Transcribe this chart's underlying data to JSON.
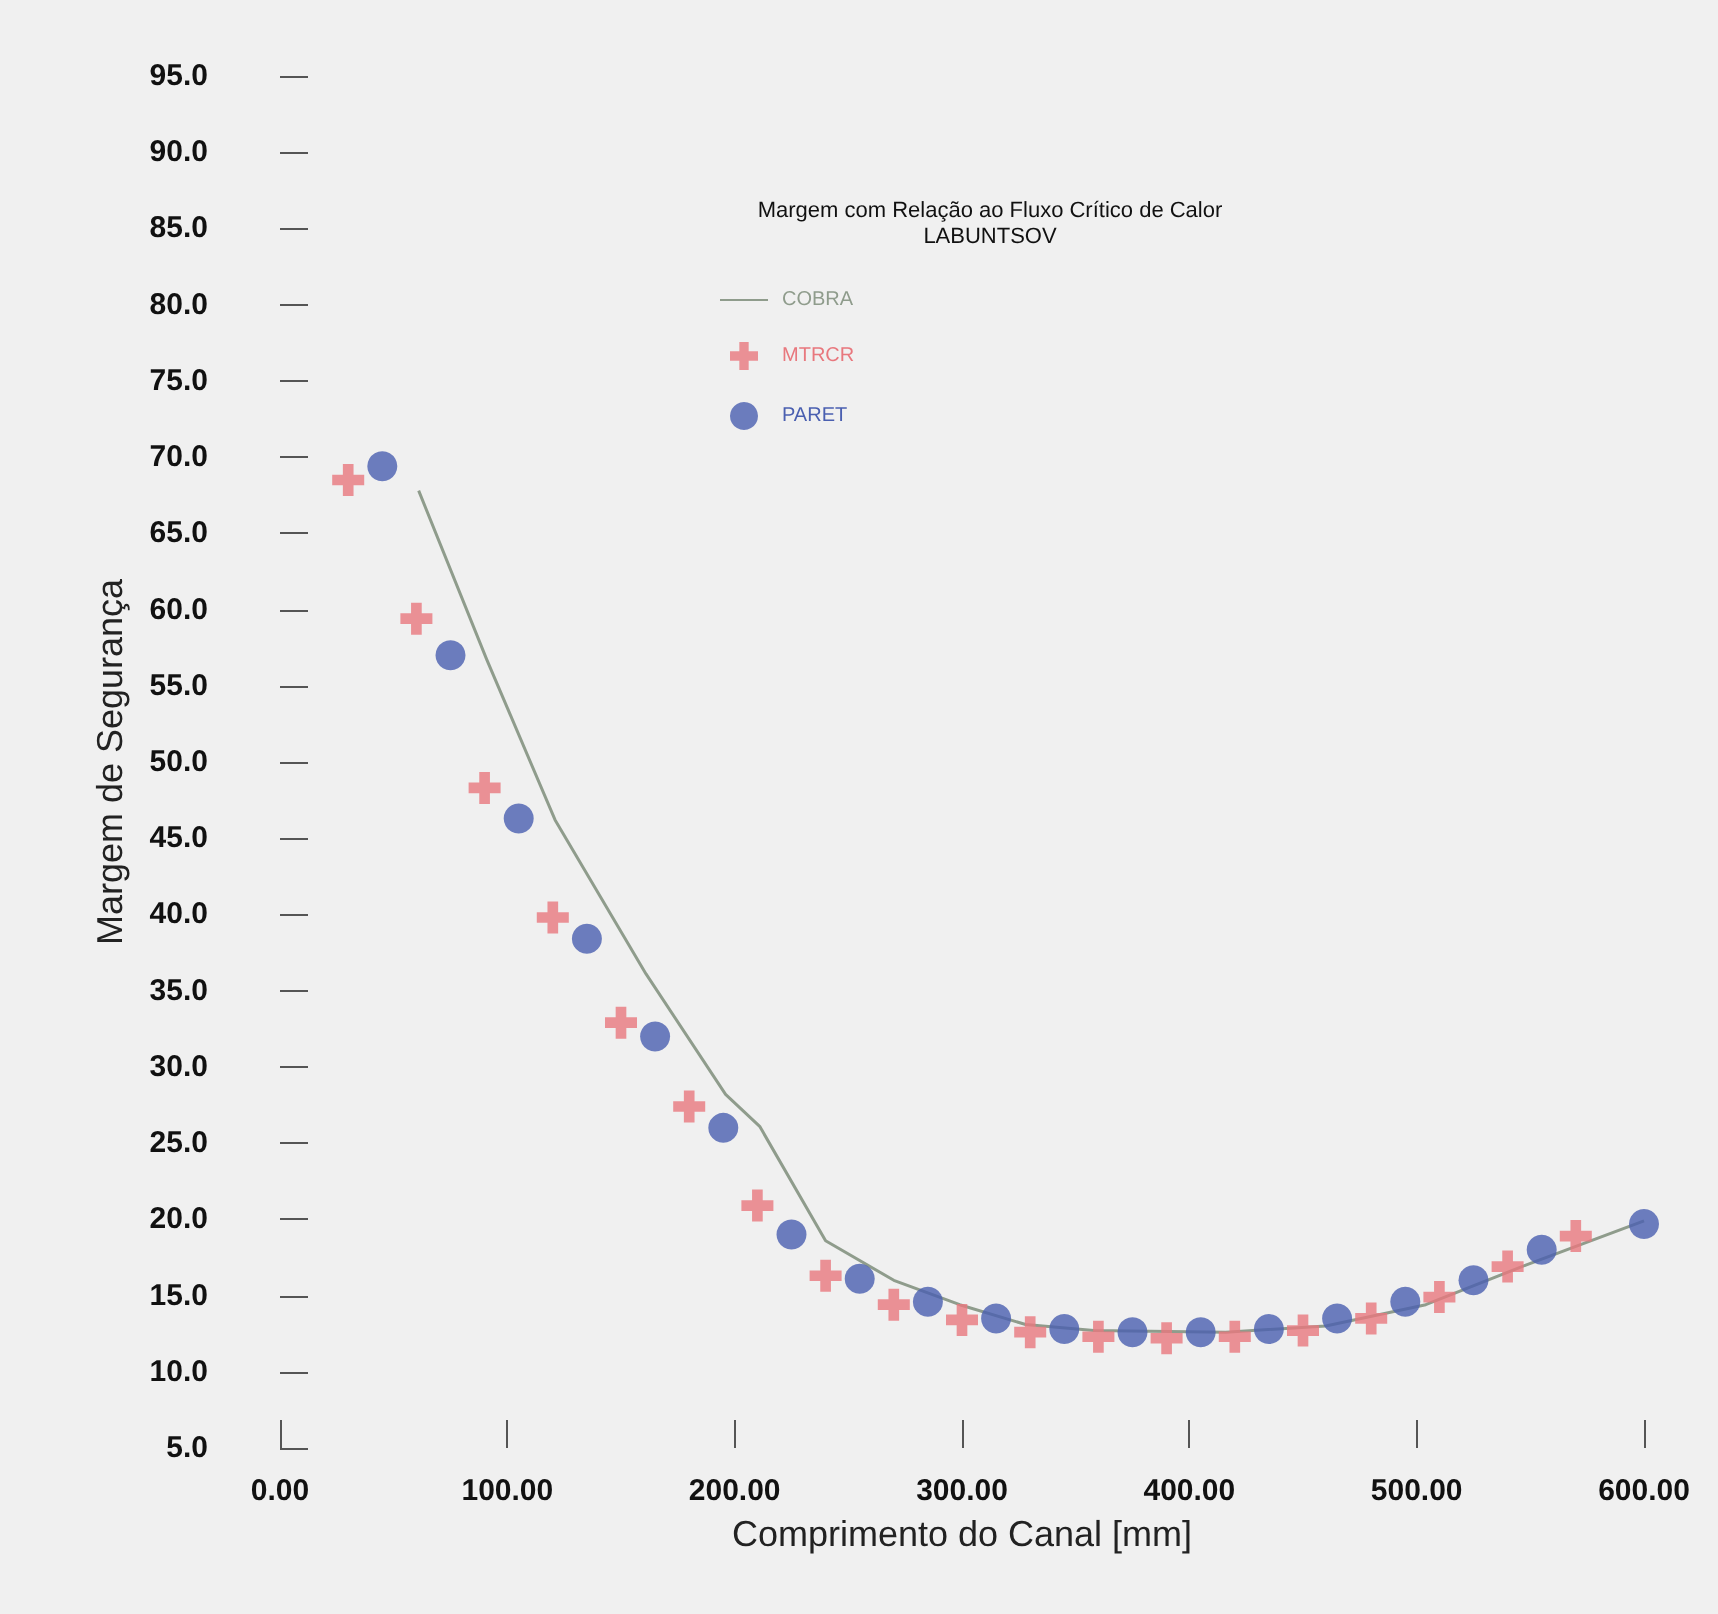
{
  "chart_data": {
    "type": "line",
    "xlabel": "Comprimento do Canal [mm]",
    "ylabel": "Margem de Segurança",
    "legend_title": "Margem com Relação ao Fluxo Crítico de Calor\nLABUNTSOV",
    "legend": "top",
    "grid": false,
    "xlim": [
      0,
      600
    ],
    "xticks": [
      {
        "value": 0,
        "label": "0.00"
      },
      {
        "value": 100,
        "label": "100.00"
      },
      {
        "value": 200,
        "label": "200.00"
      },
      {
        "value": 300,
        "label": "300.00"
      },
      {
        "value": 400,
        "label": "400.00"
      },
      {
        "value": 500,
        "label": "500.00"
      },
      {
        "value": 600,
        "label": "600.00"
      }
    ],
    "ylim": [
      5,
      95
    ],
    "yticks": [
      {
        "value": 5,
        "label": "5.0"
      },
      {
        "value": 10,
        "label": "10.0"
      },
      {
        "value": 15,
        "label": "15.0"
      },
      {
        "value": 20,
        "label": "20.0"
      },
      {
        "value": 25,
        "label": "25.0"
      },
      {
        "value": 30,
        "label": "30.0"
      },
      {
        "value": 35,
        "label": "35.0"
      },
      {
        "value": 40,
        "label": "40.0"
      },
      {
        "value": 45,
        "label": "45.0"
      },
      {
        "value": 50,
        "label": "50.0"
      },
      {
        "value": 55,
        "label": "55.0"
      },
      {
        "value": 60,
        "label": "60.0"
      },
      {
        "value": 65,
        "label": "65.0"
      },
      {
        "value": 70,
        "label": "70.0"
      },
      {
        "value": 75,
        "label": "75.0"
      },
      {
        "value": 80,
        "label": "80.0"
      },
      {
        "value": 85,
        "label": "85.0"
      },
      {
        "value": 90,
        "label": "90.0"
      },
      {
        "value": 95,
        "label": "95.0"
      }
    ],
    "series": [
      {
        "name": "COBRA",
        "marker": "none",
        "color": "#8f9c8c",
        "x": [
          61,
          91,
          121,
          161,
          196,
          211,
          240,
          270,
          299,
          328,
          358,
          416,
          460,
          504,
          548,
          600
        ],
        "values": [
          67.8,
          56.7,
          46.2,
          36.1,
          28.2,
          26.1,
          18.6,
          16.0,
          14.4,
          13.1,
          12.7,
          12.6,
          13.0,
          14.4,
          17.0,
          19.9
        ]
      },
      {
        "name": "MTRCR",
        "type": "scatter",
        "marker": "cross",
        "color": "#e8787e",
        "x": [
          30,
          60,
          90,
          120,
          150,
          180,
          210,
          240,
          270,
          300,
          330,
          360,
          390,
          420,
          450,
          480,
          510,
          540,
          570
        ],
        "values": [
          68.5,
          59.4,
          48.3,
          39.8,
          32.9,
          27.4,
          20.9,
          16.3,
          14.4,
          13.4,
          12.6,
          12.3,
          12.2,
          12.3,
          12.7,
          13.5,
          14.9,
          16.9,
          18.9
        ]
      },
      {
        "name": "PARET",
        "type": "scatter",
        "marker": "circle",
        "color": "#4a5fb0",
        "x": [
          45,
          75,
          105,
          135,
          165,
          195,
          225,
          255,
          285,
          315,
          345,
          375,
          405,
          435,
          465,
          495,
          525,
          555,
          600
        ],
        "values": [
          69.4,
          57.0,
          46.3,
          38.4,
          32.0,
          26.0,
          19.0,
          16.1,
          14.6,
          13.5,
          12.8,
          12.6,
          12.6,
          12.8,
          13.5,
          14.6,
          16.0,
          18.0,
          19.7
        ]
      }
    ]
  }
}
